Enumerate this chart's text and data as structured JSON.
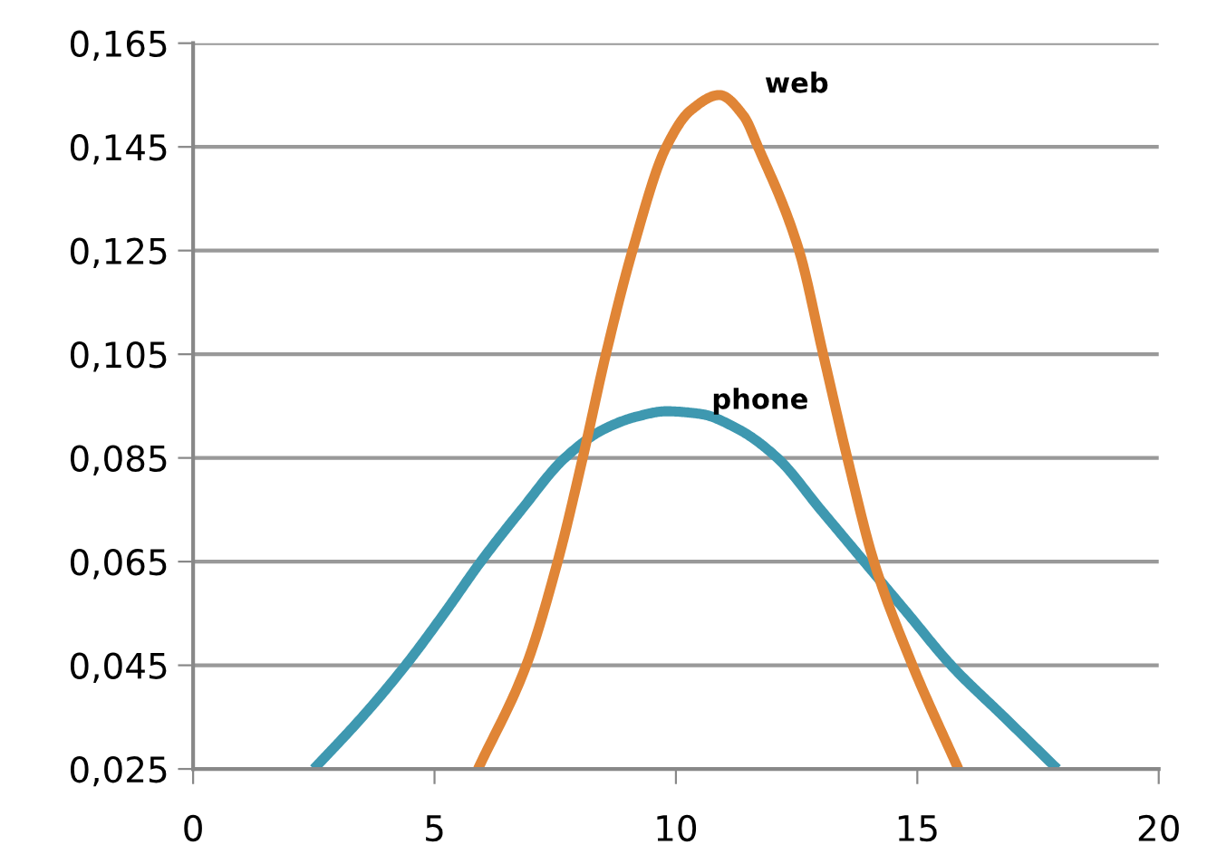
{
  "chart_data": {
    "type": "line",
    "series": [
      {
        "name": "phone",
        "color": "#3e98b0",
        "x": [
          2.5,
          3.5,
          4.4,
          5.2,
          5.96,
          6.8,
          7.7,
          8.5,
          9.2,
          9.8,
          10.5,
          11.3,
          12.1,
          13.0,
          13.9,
          14.8,
          15.7,
          16.8,
          17.9
        ],
        "values": [
          0.025,
          0.035,
          0.045,
          0.055,
          0.065,
          0.075,
          0.085,
          0.0905,
          0.093,
          0.094,
          0.0935,
          0.0905,
          0.085,
          0.075,
          0.065,
          0.055,
          0.045,
          0.035,
          0.025
        ]
      },
      {
        "name": "web",
        "color": "#e08536",
        "x": [
          5.9,
          6.9,
          7.55,
          8.07,
          8.55,
          9.1,
          9.8,
          10.3,
          10.9,
          11.4,
          11.7,
          12.55,
          13.05,
          13.55,
          14.1,
          14.9,
          15.85
        ],
        "values": [
          0.025,
          0.045,
          0.065,
          0.085,
          0.105,
          0.125,
          0.145,
          0.152,
          0.155,
          0.151,
          0.145,
          0.125,
          0.105,
          0.085,
          0.065,
          0.045,
          0.025
        ]
      }
    ],
    "xlim": [
      0,
      20
    ],
    "xticks": [
      0,
      5,
      10,
      15,
      20
    ],
    "ylim": [
      0.025,
      0.165
    ],
    "yticks": [
      {
        "value": 0.025,
        "label": "0,025"
      },
      {
        "value": 0.045,
        "label": "0,045"
      },
      {
        "value": 0.065,
        "label": "0,065"
      },
      {
        "value": 0.085,
        "label": "0,085"
      },
      {
        "value": 0.105,
        "label": "0,105"
      },
      {
        "value": 0.125,
        "label": "0,125"
      },
      {
        "value": 0.145,
        "label": "0,145"
      },
      {
        "value": 0.165,
        "label": "0,165"
      }
    ],
    "grid": "y",
    "legend": false,
    "marker": "none",
    "line_style": "solid"
  }
}
